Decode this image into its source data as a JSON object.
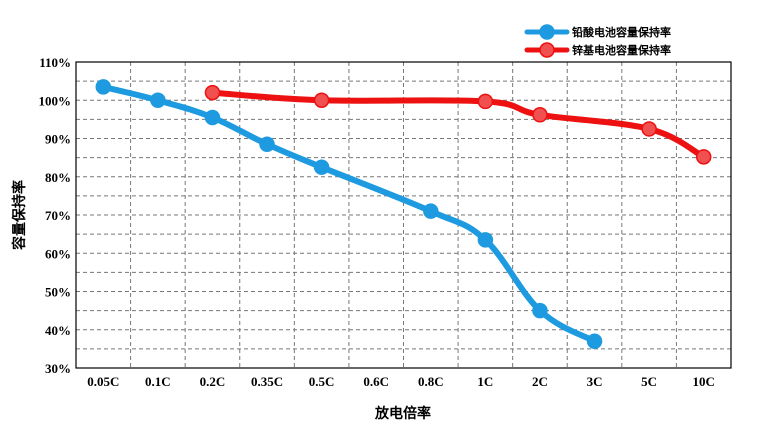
{
  "chart_data": {
    "type": "line",
    "title": "",
    "xlabel": "放电倍率",
    "ylabel": "容量保持率",
    "categories": [
      "0.05C",
      "0.1C",
      "0.2C",
      "0.35C",
      "0.5C",
      "0.6C",
      "0.8C",
      "1C",
      "2C",
      "3C",
      "5C",
      "10C"
    ],
    "y_ticks": [
      "30%",
      "40%",
      "50%",
      "60%",
      "70%",
      "80%",
      "90%",
      "100%",
      "110%"
    ],
    "ylim": [
      30,
      110
    ],
    "y_unit": "%",
    "grid": true,
    "legend_position": "top-right",
    "series": [
      {
        "name": "铅酸电池容量保持率",
        "color": "#1E9BE0",
        "marker_color": "#1E9BE0",
        "values": [
          103.5,
          100,
          95.5,
          88.5,
          82.5,
          null,
          71,
          63.5,
          45,
          37,
          null,
          null
        ],
        "marked": [
          true,
          true,
          true,
          true,
          true,
          false,
          true,
          true,
          true,
          true,
          false,
          false
        ]
      },
      {
        "name": "锌基电池容量保持率",
        "color": "#EE1111",
        "marker_color": "#F05050",
        "values": [
          null,
          null,
          102,
          null,
          100,
          null,
          null,
          99.7,
          96.2,
          null,
          92.5,
          85.2
        ],
        "marked": [
          false,
          false,
          true,
          false,
          true,
          false,
          false,
          true,
          true,
          false,
          true,
          true
        ]
      }
    ]
  }
}
